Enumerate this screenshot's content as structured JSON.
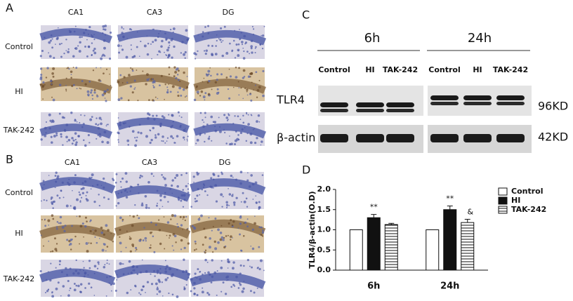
{
  "panel_a": {
    "label": "A",
    "columns": [
      "CA1",
      "CA3",
      "DG"
    ],
    "rows": [
      "Control",
      "HI",
      "TAK-242"
    ]
  },
  "panel_b": {
    "label": "B",
    "columns": [
      "CA1",
      "CA3",
      "DG"
    ],
    "rows": [
      "Control",
      "HI",
      "TAK-242"
    ]
  },
  "panel_c": {
    "label": "C",
    "timepoints": [
      "6h",
      "24h"
    ],
    "lanes": [
      "Control",
      "HI",
      "TAK-242",
      "Control",
      "HI",
      "TAK-242"
    ],
    "proteins": [
      "TLR4",
      "β-actin"
    ],
    "sizes": [
      "96KD",
      "42KD"
    ]
  },
  "chart_data": {
    "type": "bar",
    "panel_label": "D",
    "ylabel": "TLR4/β-actin(O.D)",
    "categories": [
      "6h",
      "24h"
    ],
    "series": [
      {
        "name": "Control",
        "color": "#ffffff",
        "values": [
          1.0,
          1.0
        ],
        "errors": [
          null,
          null
        ],
        "markers": [
          null,
          null
        ]
      },
      {
        "name": "HI",
        "color": "#111111",
        "values": [
          1.3,
          1.5
        ],
        "errors": [
          0.08,
          0.09
        ],
        "markers": [
          "**",
          "**"
        ]
      },
      {
        "name": "TAK-242",
        "color": "#ffffff",
        "hatch": "horizontal",
        "values": [
          1.13,
          1.18
        ],
        "errors": [
          0.03,
          0.08
        ],
        "markers": [
          null,
          "&"
        ]
      }
    ],
    "ylim": [
      0,
      2.0
    ],
    "yticks": [
      {
        "value": 0,
        "label": "0.0"
      },
      {
        "value": 0.5,
        "label": "0.5"
      },
      {
        "value": 1.0,
        "label": "1.0"
      },
      {
        "value": 1.5,
        "label": "1.5"
      },
      {
        "value": 2.0,
        "label": "2.0"
      }
    ],
    "legend": "upper right"
  }
}
